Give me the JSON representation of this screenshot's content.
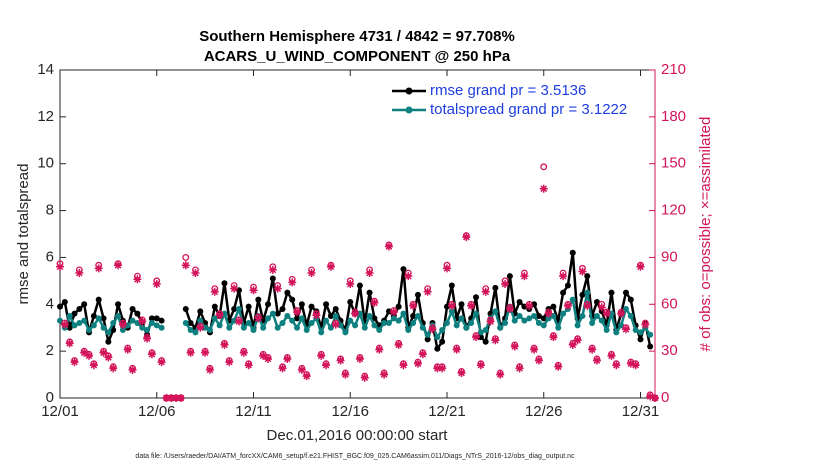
{
  "chart_data": {
    "type": "line",
    "title": "Southern Hemisphere 4731 / 4842 = 97.708%",
    "subtitle": "ACARS_U_WIND_COMPONENT @ 250 hPa",
    "ylabel": "rmse and totalspread",
    "y2label": "# of obs: o=possible; ×=assimilated",
    "xlabel": "Dec.01,2016 00:00:00 start",
    "footnote": "data file: /Users/raeder/DAI/ATM_forcXX/CAM6_setup/f.e21.FHIST_BGC.f09_025.CAM6assim.011/Diags_NTrS_2016-12/obs_diag_output.nc",
    "legend": "northeast",
    "xlim": [
      0,
      30.75
    ],
    "xticks": [
      {
        "value": 0,
        "label": "12/01"
      },
      {
        "value": 5,
        "label": "12/06"
      },
      {
        "value": 10,
        "label": "12/11"
      },
      {
        "value": 15,
        "label": "12/16"
      },
      {
        "value": 20,
        "label": "12/21"
      },
      {
        "value": 25,
        "label": "12/26"
      },
      {
        "value": 30,
        "label": "12/31"
      }
    ],
    "ylim": [
      0,
      14
    ],
    "yticks": [
      0,
      2,
      4,
      6,
      8,
      10,
      12,
      14
    ],
    "y2lim": [
      0,
      210
    ],
    "y2ticks": [
      0,
      30,
      60,
      90,
      120,
      150,
      180,
      210
    ],
    "y2color": "#d4145a",
    "x": [
      0,
      0.25,
      0.5,
      0.75,
      1,
      1.25,
      1.5,
      1.75,
      2,
      2.25,
      2.5,
      2.75,
      3,
      3.25,
      3.5,
      3.75,
      4,
      4.25,
      4.5,
      4.75,
      5,
      5.25,
      5.5,
      5.75,
      6,
      6.25,
      6.5,
      6.75,
      7,
      7.25,
      7.5,
      7.75,
      8,
      8.25,
      8.5,
      8.75,
      9,
      9.25,
      9.5,
      9.75,
      10,
      10.25,
      10.5,
      10.75,
      11,
      11.25,
      11.5,
      11.75,
      12,
      12.25,
      12.5,
      12.75,
      13,
      13.25,
      13.5,
      13.75,
      14,
      14.25,
      14.5,
      14.75,
      15,
      15.25,
      15.5,
      15.75,
      16,
      16.25,
      16.5,
      16.75,
      17,
      17.25,
      17.5,
      17.75,
      18,
      18.25,
      18.5,
      18.75,
      19,
      19.25,
      19.5,
      19.75,
      20,
      20.25,
      20.5,
      20.75,
      21,
      21.25,
      21.5,
      21.75,
      22,
      22.25,
      22.5,
      22.75,
      23,
      23.25,
      23.5,
      23.75,
      24,
      24.25,
      24.5,
      24.75,
      25,
      25.25,
      25.5,
      25.75,
      26,
      26.25,
      26.5,
      26.75,
      27,
      27.25,
      27.5,
      27.75,
      28,
      28.25,
      28.5,
      28.75,
      29,
      29.25,
      29.5,
      29.75,
      30,
      30.25,
      30.5,
      30.75
    ],
    "series": [
      {
        "name": "rmse grand pr = 3.5136",
        "color": "#000000",
        "marker": "dot",
        "values": [
          3.9,
          4.1,
          3.0,
          3.6,
          3.8,
          4.0,
          2.8,
          3.5,
          4.2,
          3.4,
          2.4,
          2.9,
          4.0,
          3.3,
          3.0,
          3.8,
          3.6,
          3.2,
          2.7,
          3.4,
          3.4,
          3.3,
          null,
          null,
          null,
          null,
          3.8,
          3.2,
          3.0,
          3.7,
          3.2,
          2.8,
          3.9,
          3.5,
          4.9,
          3.3,
          3.8,
          4.6,
          3.2,
          3.9,
          3.0,
          4.2,
          3.3,
          4.0,
          5.1,
          3.6,
          3.8,
          4.5,
          4.2,
          3.4,
          4.0,
          3.1,
          3.9,
          3.7,
          3.0,
          4.0,
          3.5,
          3.8,
          3.3,
          2.9,
          4.1,
          3.6,
          4.8,
          3.2,
          4.5,
          3.4,
          3.1,
          3.3,
          3.7,
          3.5,
          3.9,
          5.5,
          3.0,
          3.5,
          4.4,
          3.2,
          2.5,
          3.2,
          2.1,
          2.4,
          3.9,
          4.8,
          3.4,
          4.0,
          3.0,
          3.4,
          4.3,
          2.6,
          2.4,
          3.6,
          4.7,
          3.0,
          3.4,
          5.2,
          3.6,
          4.1,
          3.9,
          3.8,
          4.0,
          3.5,
          3.4,
          3.8,
          3.9,
          3.3,
          4.5,
          4.8,
          6.2,
          3.4,
          4.4,
          5.2,
          3.5,
          4.1,
          3.7,
          3.1,
          4.5,
          2.9,
          3.6,
          4.5,
          4.2,
          3.1,
          2.5,
          3.2,
          2.2,
          null
        ]
      },
      {
        "name": "totalspread grand pr = 3.1222",
        "color": "#0e8080",
        "marker": "dot",
        "values": [
          3.3,
          3.0,
          3.5,
          3.1,
          3.2,
          3.3,
          2.9,
          3.1,
          3.4,
          3.0,
          2.8,
          3.2,
          3.5,
          2.9,
          3.1,
          3.3,
          3.2,
          3.0,
          2.9,
          3.2,
          3.1,
          3.0,
          null,
          null,
          null,
          null,
          3.2,
          2.9,
          2.8,
          3.3,
          3.0,
          2.9,
          3.4,
          3.1,
          3.6,
          3.0,
          3.3,
          3.8,
          3.0,
          3.2,
          2.9,
          3.5,
          3.0,
          3.4,
          3.6,
          3.0,
          3.2,
          3.5,
          3.3,
          3.0,
          3.4,
          2.9,
          3.2,
          3.4,
          2.8,
          3.3,
          3.0,
          3.5,
          3.1,
          2.8,
          3.3,
          3.1,
          3.6,
          3.0,
          3.5,
          3.1,
          2.9,
          3.2,
          3.2,
          3.4,
          3.3,
          3.6,
          2.9,
          3.2,
          3.5,
          3.0,
          2.7,
          3.1,
          2.6,
          2.9,
          3.2,
          3.7,
          3.1,
          3.4,
          3.0,
          3.2,
          3.6,
          2.8,
          2.9,
          3.4,
          3.7,
          3.0,
          3.2,
          3.9,
          3.3,
          3.5,
          3.3,
          3.4,
          3.5,
          3.2,
          3.1,
          3.4,
          3.5,
          3.0,
          3.6,
          3.8,
          4.2,
          3.1,
          3.5,
          4.5,
          3.2,
          3.5,
          3.3,
          2.9,
          3.6,
          2.8,
          3.1,
          3.8,
          3.5,
          2.9,
          2.8,
          3.0,
          2.7,
          null
        ]
      },
      {
        "name": "possible",
        "color": "#d4145a",
        "marker": "circle",
        "axis": "y2",
        "values": [
          86,
          48,
          36,
          24,
          82,
          30,
          28,
          22,
          85,
          30,
          27,
          20,
          86,
          48,
          32,
          19,
          78,
          50,
          39,
          29,
          75,
          24,
          0,
          0,
          0,
          0,
          90,
          30,
          82,
          46,
          30,
          19,
          70,
          54,
          35,
          24,
          72,
          50,
          30,
          22,
          71,
          52,
          28,
          26,
          84,
          72,
          20,
          26,
          76,
          56,
          19,
          15,
          82,
          54,
          28,
          22,
          85,
          48,
          25,
          16,
          75,
          55,
          26,
          14,
          82,
          62,
          32,
          16,
          98,
          56,
          35,
          22,
          80,
          60,
          23,
          29,
          70,
          45,
          20,
          20,
          85,
          60,
          32,
          17,
          104,
          60,
          40,
          22,
          70,
          50,
          38,
          16,
          75,
          58,
          34,
          20,
          80,
          60,
          32,
          25,
          148,
          55,
          40,
          21,
          80,
          60,
          35,
          38,
          83,
          60,
          32,
          25,
          60,
          55,
          28,
          22,
          55,
          45,
          23,
          22,
          85,
          48,
          2,
          0
        ]
      },
      {
        "name": "assimilated",
        "color": "#d4145a",
        "marker": "asterisk",
        "axis": "y2",
        "values": [
          84,
          47,
          35,
          23,
          80,
          29,
          27,
          21,
          83,
          29,
          26,
          19,
          85,
          47,
          31,
          18,
          76,
          49,
          38,
          28,
          73,
          23,
          0,
          0,
          0,
          0,
          85,
          29,
          80,
          45,
          29,
          18,
          68,
          53,
          34,
          23,
          70,
          49,
          29,
          21,
          69,
          51,
          27,
          25,
          82,
          70,
          19,
          25,
          74,
          55,
          18,
          14,
          80,
          53,
          27,
          21,
          84,
          47,
          24,
          15,
          73,
          54,
          25,
          13,
          80,
          61,
          31,
          15,
          97,
          55,
          34,
          21,
          78,
          59,
          22,
          28,
          68,
          44,
          19,
          19,
          83,
          59,
          31,
          16,
          103,
          59,
          39,
          21,
          68,
          49,
          37,
          15,
          73,
          57,
          33,
          19,
          78,
          59,
          31,
          24,
          134,
          54,
          39,
          20,
          78,
          59,
          34,
          37,
          81,
          59,
          31,
          24,
          58,
          54,
          27,
          21,
          54,
          44,
          22,
          21,
          84,
          47,
          1,
          0
        ]
      }
    ]
  }
}
